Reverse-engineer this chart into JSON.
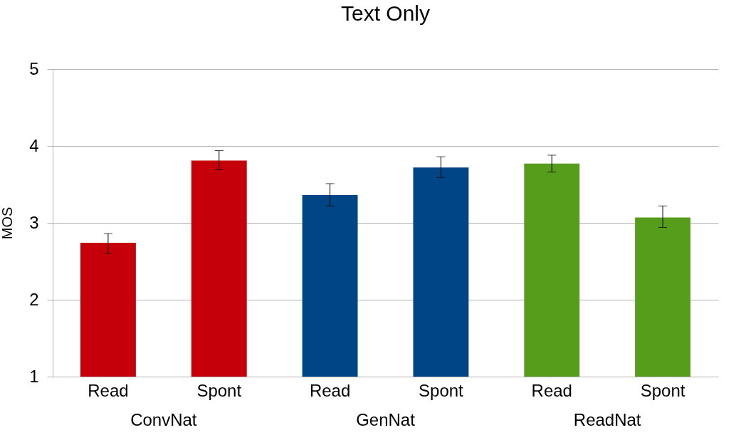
{
  "chart_data": {
    "type": "bar",
    "title": "Text Only",
    "ylabel": "MOS",
    "categories": [
      "Read",
      "Spont",
      "Read",
      "Spont",
      "Read",
      "Spont"
    ],
    "values": [
      2.74,
      3.81,
      3.36,
      3.72,
      3.77,
      3.07
    ],
    "colors": [
      "#c5000b",
      "#c5000b",
      "#004586",
      "#004586",
      "#579d1c",
      "#579d1c"
    ],
    "errors": [
      [
        2.6,
        2.86
      ],
      [
        3.69,
        3.94
      ],
      [
        3.22,
        3.51
      ],
      [
        3.59,
        3.86
      ],
      [
        3.66,
        3.88
      ],
      [
        2.94,
        3.22
      ]
    ],
    "annotations": [
      "ConvNat",
      "GenNat",
      "ReadNat"
    ],
    "ylim": [
      1,
      5
    ],
    "yticks": [
      1,
      2,
      3,
      4,
      5
    ],
    "grid": "y"
  }
}
